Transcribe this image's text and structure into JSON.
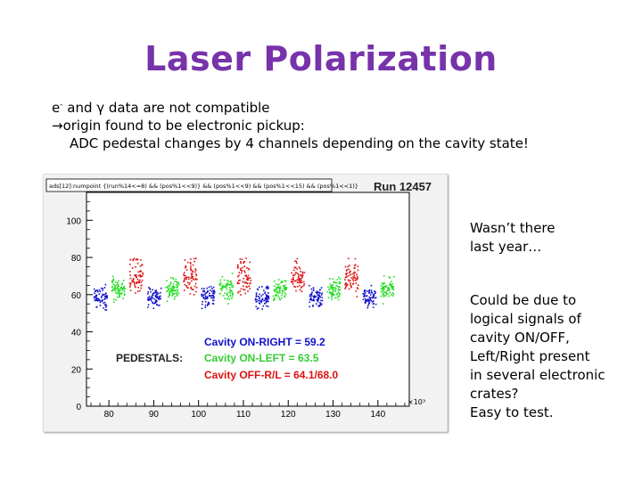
{
  "slide": {
    "title": "Laser Polarization",
    "bullets": {
      "line1_pre": "e",
      "line1_sup": "-",
      "line1_mid": " and ",
      "line1_gamma": "γ",
      "line1_post": " data are not compatible",
      "line2_arrow": "→",
      "line2_text": "origin found to be electronic pickup:",
      "line3_text": "ADC pedestal changes by 4 channels depending on the cavity state!"
    },
    "notes": {
      "note1": [
        "Wasn’t there",
        "last year…"
      ],
      "note2": [
        "Could be due to",
        "logical signals of",
        "cavity ON/OFF,",
        "Left/Right present",
        "in several electronic",
        "crates?",
        "Easy to test."
      ]
    }
  },
  "chart_data": {
    "type": "scatter",
    "cut_label": "ads[12]:numpoint {(run%14<=8) && (pos%1<<9)} && (pos%1<<9) && (pos%1<<15) && (pos%1<<1)}",
    "run_label": "Run 12457",
    "xlim": [
      75,
      147
    ],
    "ylim": [
      0,
      115
    ],
    "x_ticks": [
      "80",
      "90",
      "100",
      "110",
      "120",
      "130",
      "140"
    ],
    "y_ticks": [
      "0",
      "20",
      "40",
      "60",
      "80",
      "100"
    ],
    "x_exponent": "×10³",
    "pedestals_label": "PEDESTALS:",
    "series": [
      {
        "name": "Cavity ON-RIGHT = 59.2",
        "color": "#1111cc",
        "center": 59.2,
        "spread": 5
      },
      {
        "name": "Cavity ON-LEFT = 63.5",
        "color": "#22dd22",
        "center": 63.5,
        "spread": 5
      },
      {
        "name": "Cavity OFF-R/L = 64.1/68.0",
        "color": "#dd1111",
        "center": 68.0,
        "spread": 6
      }
    ],
    "legend_colors": [
      "#1111cc",
      "#22dd22",
      "#dd1111"
    ],
    "segment_pattern": [
      "blue",
      "green",
      "red"
    ],
    "clusters_x": [
      78,
      82,
      86,
      90,
      94,
      98,
      102,
      106,
      110,
      114,
      118,
      122,
      126,
      130,
      134,
      138,
      142
    ]
  }
}
